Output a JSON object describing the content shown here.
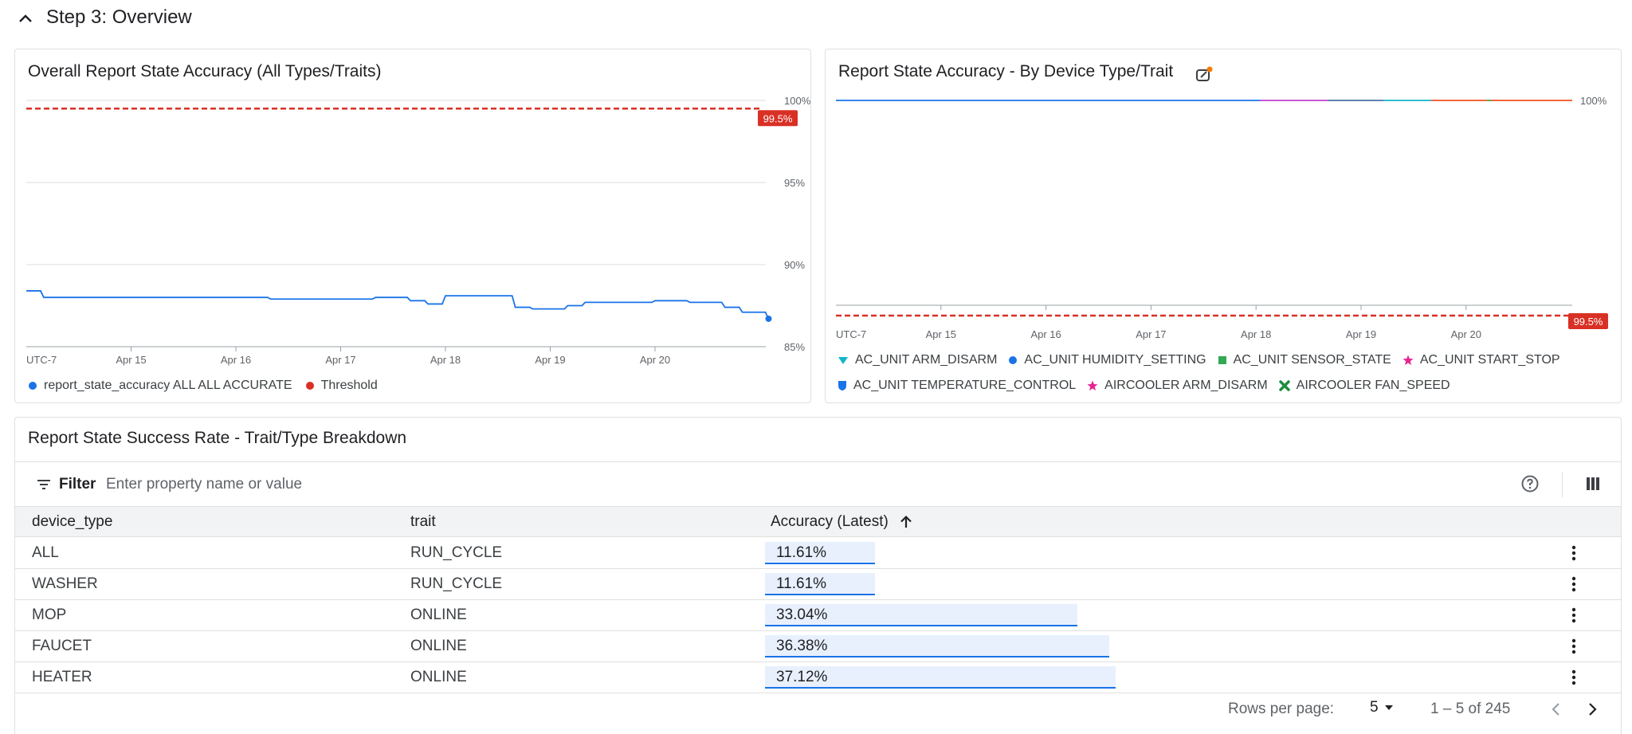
{
  "step": {
    "title": "Step 3: Overview",
    "icon": "chevron-up-icon"
  },
  "overall_chart": {
    "title": "Overall Report State Accuracy (All Types/Traits)",
    "threshold_label": "99.5%",
    "legend": [
      {
        "label": "report_state_accuracy ALL ALL ACCURATE",
        "color": "#1a73e8"
      },
      {
        "label": "Threshold",
        "color": "#d93025"
      }
    ]
  },
  "device_chart": {
    "title": "Report State Accuracy - By Device Type/Trait",
    "edit_icon": "edit-chart-icon",
    "threshold_label": "99.5%",
    "legend": [
      {
        "label": "AC_UNIT ARM_DISARM",
        "color": "#12b5cb",
        "symbol": "triangle-down"
      },
      {
        "label": "AC_UNIT HUMIDITY_SETTING",
        "color": "#1a73e8",
        "symbol": "circle"
      },
      {
        "label": "AC_UNIT SENSOR_STATE",
        "color": "#34a853",
        "symbol": "square"
      },
      {
        "label": "AC_UNIT START_STOP",
        "color": "#e52592",
        "symbol": "star"
      },
      {
        "label": "AC_UNIT TEMPERATURE_CONTROL",
        "color": "#1a73e8",
        "symbol": "shield"
      },
      {
        "label": "AIRCOOLER ARM_DISARM",
        "color": "#e52592",
        "symbol": "star"
      },
      {
        "label": "AIRCOOLER FAN_SPEED",
        "color": "#1e8e3e",
        "symbol": "cross"
      }
    ]
  },
  "chart_data": [
    {
      "type": "line",
      "title": "Overall Report State Accuracy (All Types/Traits)",
      "x_ticks": [
        "UTC-7",
        "Apr 15",
        "Apr 16",
        "Apr 17",
        "Apr 18",
        "Apr 19",
        "Apr 20"
      ],
      "y_ticks": [
        "100%",
        "95%",
        "90%",
        "85%"
      ],
      "ylim": [
        85,
        100
      ],
      "threshold": 99.5,
      "grid": true,
      "legend_position": "bottom",
      "series": [
        {
          "name": "report_state_accuracy ALL ALL ACCURATE",
          "x": [
            "Apr 14 00:00",
            "Apr 14 04:00",
            "Apr 15 00:00",
            "Apr 16 00:00",
            "Apr 16 08:00",
            "Apr 17 00:00",
            "Apr 17 08:00",
            "Apr 17 16:00",
            "Apr 17 20:00",
            "Apr 18 00:00",
            "Apr 18 08:00",
            "Apr 18 16:00",
            "Apr 18 20:00",
            "Apr 19 00:00",
            "Apr 19 04:00",
            "Apr 19 08:00",
            "Apr 19 16:00",
            "Apr 20 00:00",
            "Apr 20 08:00",
            "Apr 20 16:00",
            "Apr 20 20:00",
            "Apr 21 02:00"
          ],
          "values": [
            88.4,
            88.0,
            88.0,
            88.0,
            87.9,
            87.9,
            88.0,
            87.8,
            87.6,
            88.1,
            88.1,
            87.4,
            87.3,
            87.3,
            87.5,
            87.7,
            87.7,
            87.8,
            87.7,
            87.4,
            87.1,
            86.7
          ]
        },
        {
          "name": "Threshold",
          "x": [
            "UTC-7",
            "Apr 21 02:00"
          ],
          "values": [
            99.5,
            99.5
          ]
        }
      ]
    },
    {
      "type": "line",
      "title": "Report State Accuracy - By Device Type/Trait",
      "x_ticks": [
        "UTC-7",
        "Apr 15",
        "Apr 16",
        "Apr 17",
        "Apr 18",
        "Apr 19",
        "Apr 20"
      ],
      "y_ticks": [
        "100%"
      ],
      "threshold": 99.5,
      "legend_position": "bottom",
      "series": [
        {
          "name": "AC_UNIT ARM_DISARM",
          "values": [
            100,
            100
          ]
        },
        {
          "name": "AC_UNIT HUMIDITY_SETTING",
          "values": [
            100,
            100
          ]
        },
        {
          "name": "AC_UNIT SENSOR_STATE",
          "values": [
            100,
            100
          ]
        },
        {
          "name": "AC_UNIT START_STOP",
          "values": [
            100,
            100
          ]
        },
        {
          "name": "AC_UNIT TEMPERATURE_CONTROL",
          "values": [
            100,
            100
          ]
        },
        {
          "name": "AIRCOOLER ARM_DISARM",
          "values": [
            100,
            100
          ]
        },
        {
          "name": "AIRCOOLER FAN_SPEED",
          "values": [
            100,
            100
          ]
        }
      ]
    }
  ],
  "table": {
    "title": "Report State Success Rate - Trait/Type Breakdown",
    "filter_label": "Filter",
    "filter_placeholder": "Enter property name or value",
    "columns": [
      "device_type",
      "trait",
      "Accuracy (Latest)"
    ],
    "rows": [
      {
        "device_type": "ALL",
        "trait": "RUN_CYCLE",
        "accuracy": "11.61%",
        "accuracy_value": 11.61
      },
      {
        "device_type": "WASHER",
        "trait": "RUN_CYCLE",
        "accuracy": "11.61%",
        "accuracy_value": 11.61
      },
      {
        "device_type": "MOP",
        "trait": "ONLINE",
        "accuracy": "33.04%",
        "accuracy_value": 33.04
      },
      {
        "device_type": "FAUCET",
        "trait": "ONLINE",
        "accuracy": "36.38%",
        "accuracy_value": 36.38
      },
      {
        "device_type": "HEATER",
        "trait": "ONLINE",
        "accuracy": "37.12%",
        "accuracy_value": 37.12
      }
    ],
    "pagination": {
      "rows_per_page_label": "Rows per page:",
      "rows_per_page": "5",
      "range": "1 – 5 of 245"
    }
  },
  "colors": {
    "accent": "#1a73e8",
    "threshold": "#d93025",
    "bar_fill": "#e8f0fe"
  }
}
